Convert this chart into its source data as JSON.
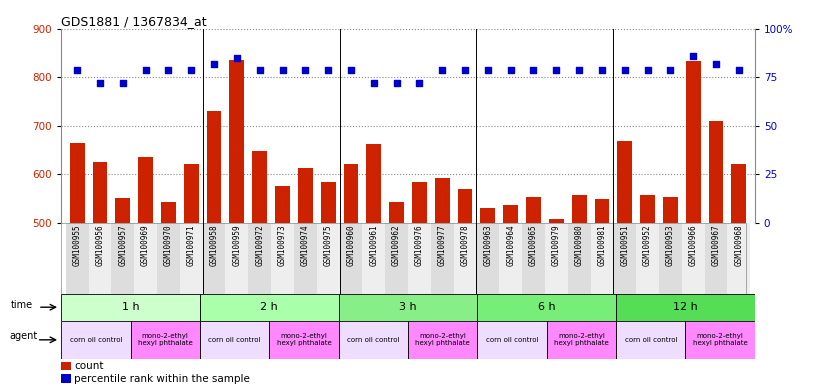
{
  "title": "GDS1881 / 1367834_at",
  "samples": [
    "GSM100955",
    "GSM100956",
    "GSM100957",
    "GSM100969",
    "GSM100970",
    "GSM100971",
    "GSM100958",
    "GSM100959",
    "GSM100972",
    "GSM100973",
    "GSM100974",
    "GSM100975",
    "GSM100960",
    "GSM100961",
    "GSM100962",
    "GSM100976",
    "GSM100977",
    "GSM100978",
    "GSM100963",
    "GSM100964",
    "GSM100965",
    "GSM100979",
    "GSM100980",
    "GSM100981",
    "GSM100951",
    "GSM100952",
    "GSM100953",
    "GSM100966",
    "GSM100967",
    "GSM100968"
  ],
  "counts": [
    665,
    625,
    550,
    635,
    543,
    622,
    730,
    835,
    648,
    575,
    612,
    585,
    622,
    663,
    543,
    585,
    592,
    570,
    530,
    537,
    553,
    508,
    557,
    548,
    668,
    557,
    553,
    833,
    710,
    622
  ],
  "percentiles": [
    79,
    72,
    72,
    79,
    79,
    79,
    82,
    85,
    79,
    79,
    79,
    79,
    79,
    72,
    72,
    72,
    79,
    79,
    79,
    79,
    79,
    79,
    79,
    79,
    79,
    79,
    79,
    86,
    82,
    79
  ],
  "ylim_left": [
    500,
    900
  ],
  "ylim_right": [
    0,
    100
  ],
  "yticks_left": [
    500,
    600,
    700,
    800,
    900
  ],
  "yticks_right": [
    0,
    25,
    50,
    75,
    100
  ],
  "ytick_right_labels": [
    "0",
    "25",
    "50",
    "75",
    "100%"
  ],
  "bar_color": "#cc2200",
  "dot_color": "#0000cc",
  "grid_color": "#888888",
  "time_groups": [
    {
      "label": "1 h",
      "start": 0,
      "end": 6,
      "color": "#ccffcc"
    },
    {
      "label": "2 h",
      "start": 6,
      "end": 12,
      "color": "#aaffaa"
    },
    {
      "label": "3 h",
      "start": 12,
      "end": 18,
      "color": "#88ee88"
    },
    {
      "label": "6 h",
      "start": 18,
      "end": 24,
      "color": "#77ee77"
    },
    {
      "label": "12 h",
      "start": 24,
      "end": 30,
      "color": "#55dd55"
    }
  ],
  "agent_groups": [
    {
      "label": "corn oil control",
      "start": 0,
      "end": 3,
      "color": "#eeddff"
    },
    {
      "label": "mono-2-ethyl\nhexyl phthalate",
      "start": 3,
      "end": 6,
      "color": "#ff88ff"
    },
    {
      "label": "corn oil control",
      "start": 6,
      "end": 9,
      "color": "#eeddff"
    },
    {
      "label": "mono-2-ethyl\nhexyl phthalate",
      "start": 9,
      "end": 12,
      "color": "#ff88ff"
    },
    {
      "label": "corn oil control",
      "start": 12,
      "end": 15,
      "color": "#eeddff"
    },
    {
      "label": "mono-2-ethyl\nhexyl phthalate",
      "start": 15,
      "end": 18,
      "color": "#ff88ff"
    },
    {
      "label": "corn oil control",
      "start": 18,
      "end": 21,
      "color": "#eeddff"
    },
    {
      "label": "mono-2-ethyl\nhexyl phthalate",
      "start": 21,
      "end": 24,
      "color": "#ff88ff"
    },
    {
      "label": "corn oil control",
      "start": 24,
      "end": 27,
      "color": "#eeddff"
    },
    {
      "label": "mono-2-ethyl\nhexyl phthalate",
      "start": 27,
      "end": 30,
      "color": "#ff88ff"
    }
  ],
  "xtick_bg_color": "#dddddd",
  "bg_color": "#ffffff",
  "legend_count_color": "#cc2200",
  "legend_dot_color": "#0000cc"
}
